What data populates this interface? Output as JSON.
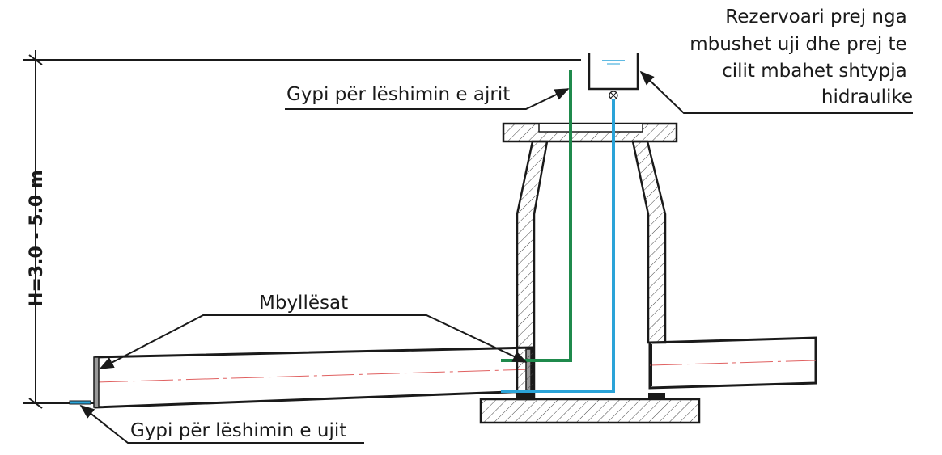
{
  "labels": {
    "reservoir": [
      "Rezervoari prej nga",
      "mbushet uji dhe prej te",
      "cilit mbahet shtypja",
      "hidraulike"
    ],
    "air_pipe": "Gypi për lëshimin e ajrit",
    "closures": "Mbyllësat",
    "water_pipe": "Gypi për lëshimin e ujit",
    "height": "H=3.0 - 5.0 m"
  },
  "colors": {
    "line": "#1a1a1a",
    "air_pipe": "#1f8a4c",
    "water_pipe": "#2aa3d8",
    "centerline": "#e06060",
    "hatch": "#444444"
  }
}
